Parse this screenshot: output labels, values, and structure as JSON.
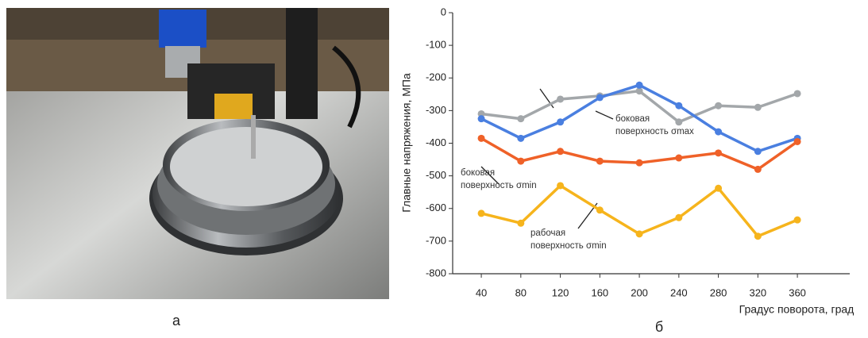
{
  "panel_labels": [
    "а",
    "б"
  ],
  "chart_data": {
    "type": "line",
    "x": [
      40,
      80,
      120,
      160,
      200,
      240,
      280,
      320,
      360
    ],
    "xlim": [
      11,
      413
    ],
    "xticks": [
      40,
      80,
      120,
      160,
      200,
      240,
      280,
      320,
      360
    ],
    "ylim": [
      -800,
      0
    ],
    "yticks": [
      0,
      -100,
      -200,
      -300,
      -400,
      -500,
      -600,
      -700,
      -800
    ],
    "x_label": "Градус поворота, град",
    "y_label": "Главные напряжения, МПа",
    "series": [
      {
        "color": "#a3a7aa",
        "values": [
          -310,
          -325,
          -265,
          -255,
          -240,
          -335,
          -285,
          -290,
          -248
        ]
      },
      {
        "color": "#4a7fe0",
        "values": [
          -325,
          -385,
          -335,
          -260,
          -222,
          -285,
          -365,
          -425,
          -385
        ]
      },
      {
        "color": "#ef6128",
        "values": [
          -385,
          -455,
          -425,
          -455,
          -460,
          -445,
          -430,
          -480,
          -395
        ]
      },
      {
        "color": "#f6b41c",
        "values": [
          -615,
          -645,
          -530,
          -605,
          -678,
          -628,
          -538,
          -685,
          -635
        ]
      }
    ],
    "annotations": [
      {
        "lines": [
          "боковая",
          "поверхность σmax"
        ]
      },
      {
        "lines": [
          "боковая",
          "поверхность σmin"
        ]
      },
      {
        "lines": [
          "рабочая",
          "поверхность σmin"
        ]
      }
    ]
  }
}
